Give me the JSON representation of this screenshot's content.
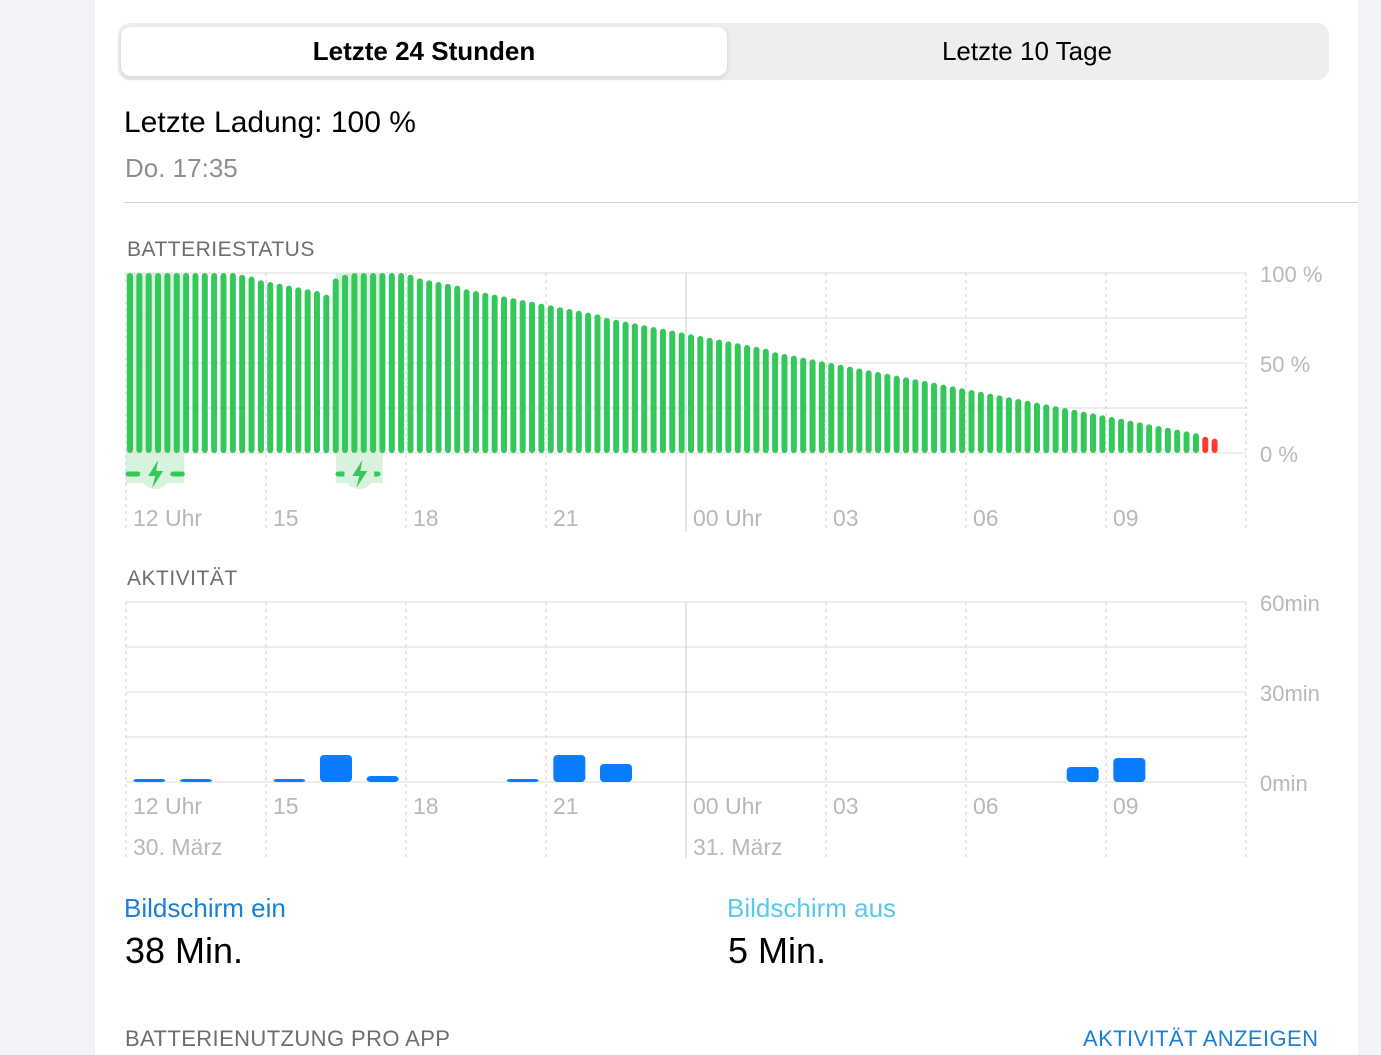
{
  "tabs": [
    {
      "label": "Letzte 24 Stunden",
      "active": true
    },
    {
      "label": "Letzte 10 Tage",
      "active": false
    }
  ],
  "last_charge": {
    "label": "Letzte Ladung: 100 %",
    "time": "Do. 17:35"
  },
  "battery_section_title": "BATTERIESTATUS",
  "activity_section_title": "AKTIVITÄT",
  "screen_on": {
    "label": "Bildschirm ein",
    "value": "38 Min.",
    "color": "#1a7fd6"
  },
  "screen_off": {
    "label": "Bildschirm aus",
    "value": "5 Min.",
    "color": "#5ac8ea"
  },
  "footer": {
    "usage_label": "BATTERIENUTZUNG PRO APP",
    "show_activity_label": "AKTIVITÄT ANZEIGEN"
  },
  "colors": {
    "battery_green": "#34c759",
    "battery_low_red": "#ff3b30",
    "charging_band": "#d7f3dd",
    "activity_blue": "#0a7cff"
  },
  "chart_data": [
    {
      "type": "bar",
      "name": "battery_level",
      "x_tick_labels": [
        "12 Uhr",
        "15",
        "18",
        "21",
        "00 Uhr",
        "03",
        "06",
        "09"
      ],
      "y_tick_labels": [
        "100 %",
        "50 %",
        "0 %"
      ],
      "ylim": [
        0,
        100
      ],
      "grid": true,
      "charging_periods_hours": [
        [
          0.0,
          1.25
        ],
        [
          4.5,
          5.5
        ]
      ],
      "low_threshold": 10,
      "values": [
        100,
        100,
        100,
        100,
        100,
        100,
        100,
        100,
        100,
        100,
        100,
        100,
        99,
        98,
        96,
        95,
        94,
        93,
        92,
        91,
        90,
        88,
        97,
        99,
        100,
        100,
        100,
        100,
        100,
        100,
        99,
        97,
        96,
        95,
        94,
        93,
        91,
        90,
        89,
        88,
        87,
        86,
        85,
        84,
        83,
        82,
        81,
        80,
        79,
        78,
        77,
        75,
        74,
        73,
        72,
        71,
        70,
        69,
        68,
        67,
        66,
        65,
        64,
        63,
        62,
        61,
        60,
        59,
        58,
        56,
        55,
        54,
        53,
        52,
        51,
        50,
        49,
        48,
        47,
        46,
        45,
        44,
        43,
        42,
        41,
        40,
        39,
        38,
        37,
        36,
        35,
        34,
        33,
        32,
        31,
        30,
        29,
        28,
        27,
        26,
        25,
        24,
        23,
        22,
        21,
        20,
        19,
        18,
        17,
        16,
        15,
        14,
        13,
        12,
        11,
        9,
        8
      ]
    },
    {
      "type": "bar",
      "name": "activity",
      "x_tick_labels": [
        "12 Uhr",
        "15",
        "18",
        "21",
        "00 Uhr",
        "03",
        "06",
        "09"
      ],
      "date_labels": [
        "30. März",
        "31. März"
      ],
      "y_tick_labels": [
        "60min",
        "30min",
        "0min"
      ],
      "ylim": [
        0,
        60
      ],
      "grid": true,
      "bars_minutes": [
        {
          "hour": 0.5,
          "value": 1
        },
        {
          "hour": 1.5,
          "value": 1
        },
        {
          "hour": 3.5,
          "value": 1
        },
        {
          "hour": 4.5,
          "value": 9
        },
        {
          "hour": 5.5,
          "value": 2
        },
        {
          "hour": 8.5,
          "value": 1
        },
        {
          "hour": 9.5,
          "value": 9
        },
        {
          "hour": 10.5,
          "value": 6
        },
        {
          "hour": 20.5,
          "value": 5
        },
        {
          "hour": 21.5,
          "value": 8
        }
      ]
    }
  ]
}
